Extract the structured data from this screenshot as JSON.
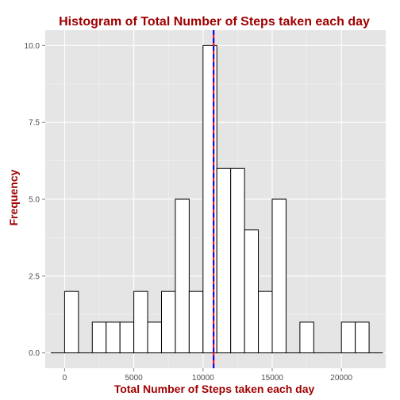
{
  "chart_data": {
    "type": "bar",
    "title": "Histogram of Total Number of Steps taken each day",
    "xlabel": "Total Number of Steps taken each day",
    "ylabel": "Frequency",
    "x_ticks": [
      "0",
      "5000",
      "10000",
      "15000",
      "20000"
    ],
    "y_ticks": [
      "0.0",
      "2.5",
      "5.0",
      "7.5",
      "10.0"
    ],
    "xlim": [
      -1400,
      23200
    ],
    "ylim": [
      -0.5,
      10.5
    ],
    "bin_width": 1000,
    "bins": [
      {
        "start": -1000,
        "end": 0,
        "count": 0
      },
      {
        "start": 0,
        "end": 1000,
        "count": 2
      },
      {
        "start": 1000,
        "end": 2000,
        "count": 0
      },
      {
        "start": 2000,
        "end": 3000,
        "count": 1
      },
      {
        "start": 3000,
        "end": 4000,
        "count": 1
      },
      {
        "start": 4000,
        "end": 5000,
        "count": 1
      },
      {
        "start": 5000,
        "end": 6000,
        "count": 2
      },
      {
        "start": 6000,
        "end": 7000,
        "count": 1
      },
      {
        "start": 7000,
        "end": 8000,
        "count": 2
      },
      {
        "start": 8000,
        "end": 9000,
        "count": 5
      },
      {
        "start": 9000,
        "end": 10000,
        "count": 2
      },
      {
        "start": 10000,
        "end": 11000,
        "count": 10
      },
      {
        "start": 11000,
        "end": 12000,
        "count": 6
      },
      {
        "start": 12000,
        "end": 13000,
        "count": 6
      },
      {
        "start": 13000,
        "end": 14000,
        "count": 4
      },
      {
        "start": 14000,
        "end": 15000,
        "count": 2
      },
      {
        "start": 15000,
        "end": 16000,
        "count": 5
      },
      {
        "start": 16000,
        "end": 17000,
        "count": 0
      },
      {
        "start": 17000,
        "end": 18000,
        "count": 1
      },
      {
        "start": 18000,
        "end": 19000,
        "count": 0
      },
      {
        "start": 19000,
        "end": 20000,
        "count": 0
      },
      {
        "start": 20000,
        "end": 21000,
        "count": 1
      },
      {
        "start": 21000,
        "end": 22000,
        "count": 1
      },
      {
        "start": 22000,
        "end": 23000,
        "count": 0
      }
    ],
    "reference_lines": [
      {
        "value": 10766,
        "color": "#ff0000",
        "style": "solid"
      },
      {
        "value": 10766,
        "color": "#0000ff",
        "style": "dashed"
      }
    ],
    "grid": true,
    "colors": {
      "panel_background": "#e5e5e5",
      "grid_major": "#ffffff",
      "bar_fill": "#ffffff",
      "bar_outline": "#000000",
      "title": "#a00000"
    }
  }
}
